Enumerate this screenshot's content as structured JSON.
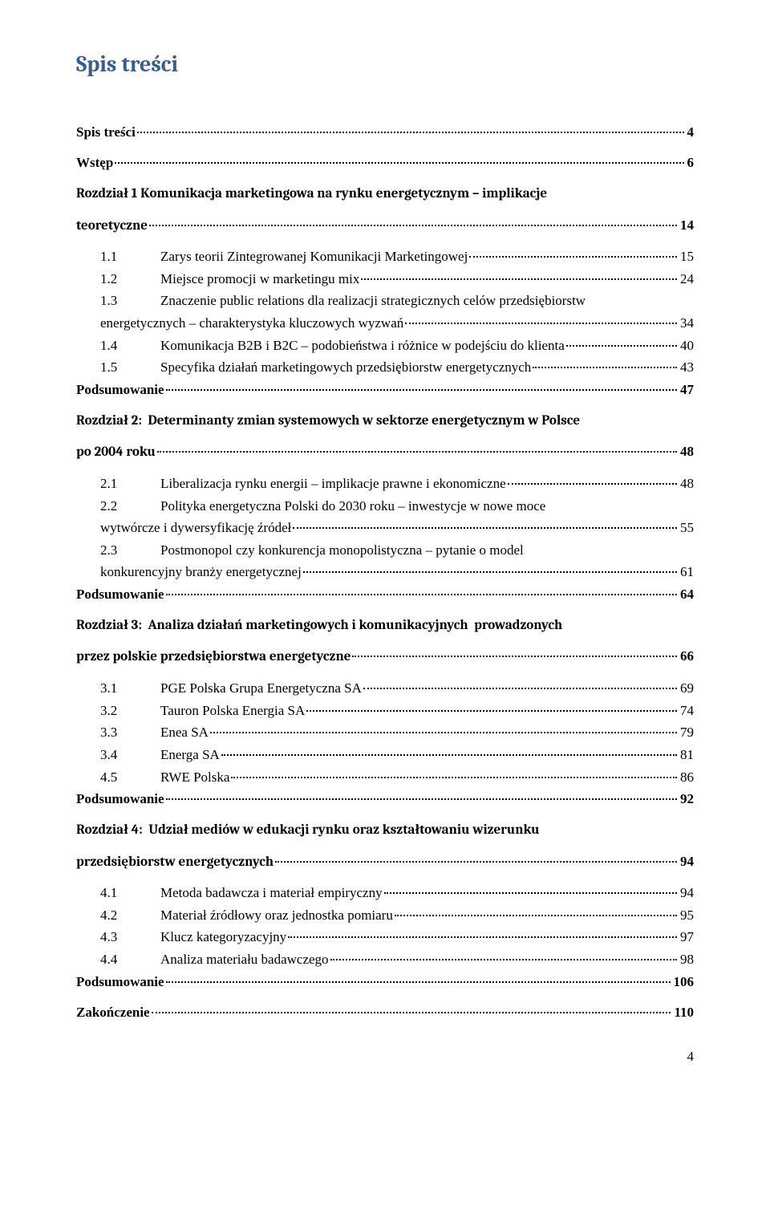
{
  "title": "Spis treści",
  "entries": [
    {
      "type": "bold",
      "label": "Spis treści",
      "page": "4"
    },
    {
      "type": "bold",
      "label": "Wstęp",
      "page": "6",
      "klass": "spacer-chapter"
    },
    {
      "type": "bold-multi",
      "lines": [
        "Rozdział 1 Komunikacja marketingowa na rynku energetycznym – implikacje"
      ],
      "last": "teoretyczne",
      "page": "14",
      "klass": "spacer-chapter"
    },
    {
      "type": "sub",
      "num": "1.1",
      "label": "Zarys teorii Zintegrowanej Komunikacji Marketingowej",
      "page": "15",
      "klass": "group-top"
    },
    {
      "type": "sub",
      "num": "1.2",
      "label": "Miejsce promocji w marketingu mix",
      "page": "24"
    },
    {
      "type": "sub-multi",
      "num": "1.3",
      "lines": [
        "Znaczenie public relations dla realizacji strategicznych celów przedsiębiorstw"
      ],
      "last": "energetycznych – charakterystyka kluczowych wyzwań",
      "page": "34",
      "lastIndent": 30
    },
    {
      "type": "sub",
      "num": "1.4",
      "label": "Komunikacja B2B i B2C – podobieństwa i różnice w podejściu do klienta",
      "page": "40"
    },
    {
      "type": "sub",
      "num": "1.5",
      "label": "Specyfika działań marketingowych przedsiębiorstw energetycznych",
      "page": "43"
    },
    {
      "type": "bold",
      "label": "Podsumowanie",
      "page": "47"
    },
    {
      "type": "bold-multi",
      "lines": [
        "Rozdział 2:  Determinanty zmian systemowych w sektorze energetycznym w Polsce"
      ],
      "last": "po 2004 roku",
      "page": "48",
      "klass": "spacer-chapter"
    },
    {
      "type": "sub",
      "num": "2.1",
      "label": "Liberalizacja rynku energii – implikacje prawne i ekonomiczne",
      "page": "48",
      "klass": "group-top"
    },
    {
      "type": "sub-multi",
      "num": "2.2",
      "lines": [
        "Polityka energetyczna Polski do 2030 roku – inwestycje w nowe moce"
      ],
      "last": "wytwórcze i dywersyfikację źródeł",
      "page": "55",
      "lastIndent": 30
    },
    {
      "type": "sub-multi",
      "num": "2.3",
      "lines": [
        "Postmonopol czy konkurencja monopolistyczna – pytanie o model"
      ],
      "last": "konkurencyjny branży energetycznej",
      "page": "61",
      "lastIndent": 30
    },
    {
      "type": "bold",
      "label": "Podsumowanie",
      "page": "64"
    },
    {
      "type": "bold-multi",
      "lines": [
        "Rozdział 3:  Analiza działań marketingowych i komunikacyjnych  prowadzonych"
      ],
      "last": "przez polskie przedsiębiorstwa energetyczne",
      "page": "66",
      "klass": "spacer-chapter"
    },
    {
      "type": "sub",
      "num": "3.1",
      "label": "PGE Polska Grupa Energetyczna SA",
      "page": "69",
      "klass": "group-top"
    },
    {
      "type": "sub",
      "num": "3.2",
      "label": "Tauron Polska Energia SA",
      "page": "74"
    },
    {
      "type": "sub",
      "num": "3.3",
      "label": "Enea SA",
      "page": "79"
    },
    {
      "type": "sub",
      "num": "3.4",
      "label": "Energa SA",
      "page": "81"
    },
    {
      "type": "sub",
      "num": "4.5",
      "label": "RWE Polska",
      "page": "86"
    },
    {
      "type": "bold",
      "label": "Podsumowanie",
      "page": "92"
    },
    {
      "type": "bold-multi",
      "lines": [
        "Rozdział 4:  Udział mediów w edukacji rynku oraz kształtowaniu wizerunku"
      ],
      "last": "przedsiębiorstw energetycznych",
      "page": "94",
      "klass": "spacer-chapter"
    },
    {
      "type": "sub",
      "num": "4.1",
      "label": "Metoda badawcza i materiał empiryczny",
      "page": "94",
      "klass": "group-top"
    },
    {
      "type": "sub",
      "num": "4.2",
      "label": "Materiał źródłowy oraz jednostka pomiaru",
      "page": "95"
    },
    {
      "type": "sub",
      "num": "4.3",
      "label": "Klucz kategoryzacyjny",
      "page": "97"
    },
    {
      "type": "sub",
      "num": "4.4",
      "label": "Analiza materiału badawczego",
      "page": "98"
    },
    {
      "type": "bold",
      "label": "Podsumowanie",
      "page": "106"
    },
    {
      "type": "bold",
      "label": "Zakończenie",
      "page": "110",
      "klass": "spacer-chapter"
    }
  ],
  "pageNumber": "4"
}
